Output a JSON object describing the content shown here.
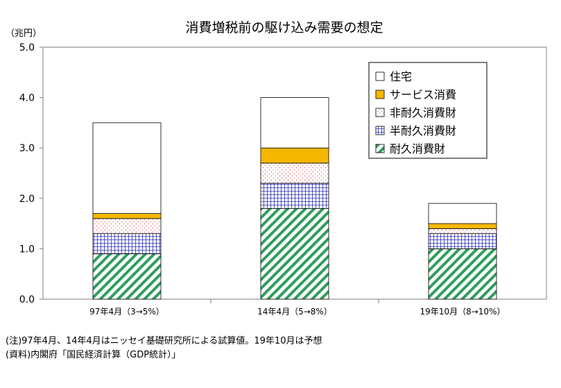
{
  "chart_data": {
    "type": "bar",
    "stacked": true,
    "title": "消費増税前の駆け込み需要の想定",
    "unit_label": "（兆円）",
    "categories": [
      "97年4月（3→5%）",
      "14年4月（5→8%）",
      "19年10月（8→10%）"
    ],
    "ylim": [
      0,
      5
    ],
    "yticks": [
      "0.0",
      "1.0",
      "2.0",
      "3.0",
      "4.0",
      "5.0"
    ],
    "grid": false,
    "legend_position": "top-right",
    "series": [
      {
        "name": "耐久消費財",
        "values": [
          0.9,
          1.8,
          1.0
        ],
        "color": "#2e9e5b",
        "pattern": "diagonal-stripes"
      },
      {
        "name": "半耐久消費財",
        "values": [
          0.4,
          0.5,
          0.3
        ],
        "color": "#2b2bb8",
        "pattern": "grid"
      },
      {
        "name": "非耐久消費財",
        "values": [
          0.3,
          0.4,
          0.1
        ],
        "color": "#e07070",
        "pattern": "dots"
      },
      {
        "name": "サービス消費",
        "values": [
          0.1,
          0.3,
          0.1
        ],
        "color": "#f5b800",
        "pattern": "solid"
      },
      {
        "name": "住宅",
        "values": [
          1.8,
          1.0,
          0.4
        ],
        "color": "#ffffff",
        "pattern": "solid"
      }
    ],
    "legend_order": [
      "住宅",
      "サービス消費",
      "非耐久消費財",
      "半耐久消費財",
      "耐久消費財"
    ]
  },
  "notes": {
    "note": "(注)97年4月、14年4月はニッセイ基礎研究所による試算値。19年10月は予想",
    "source": "(資料)内閣府「国民経済計算（GDP統計）」"
  }
}
